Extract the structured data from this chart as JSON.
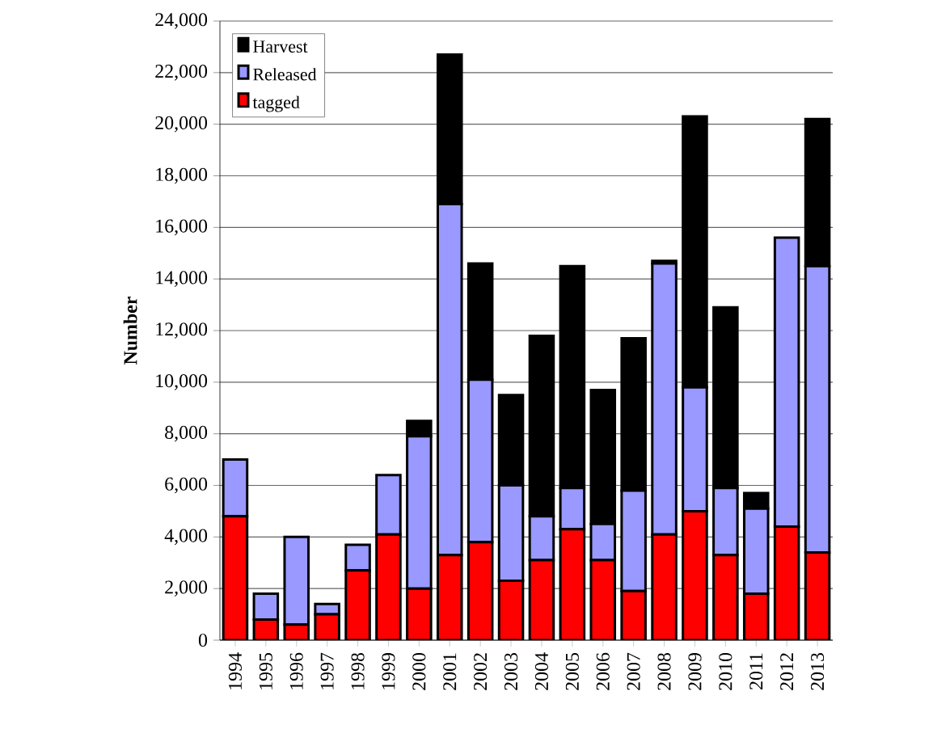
{
  "chart_data": {
    "type": "bar",
    "stacked": true,
    "ylabel": "Number",
    "categories": [
      "1994",
      "1995",
      "1996",
      "1997",
      "1998",
      "1999",
      "2000",
      "2001",
      "2002",
      "2003",
      "2004",
      "2005",
      "2006",
      "2007",
      "2008",
      "2009",
      "2010",
      "2011",
      "2012",
      "2013"
    ],
    "series": [
      {
        "name": "tagged",
        "color": "#ff0000",
        "values": [
          4800,
          800,
          600,
          1000,
          2700,
          4100,
          2000,
          3300,
          3800,
          2300,
          3100,
          4300,
          3100,
          1900,
          4100,
          5000,
          3300,
          1800,
          4400,
          3400
        ]
      },
      {
        "name": "Released",
        "color": "#9999ff",
        "values": [
          2200,
          1000,
          3400,
          400,
          1000,
          2300,
          5900,
          13600,
          6300,
          3700,
          1700,
          1600,
          1400,
          3900,
          10500,
          4800,
          2600,
          3300,
          11200,
          11100
        ]
      },
      {
        "name": "Harvest",
        "color": "#000000",
        "values": [
          0,
          0,
          0,
          0,
          0,
          0,
          600,
          5800,
          4500,
          3500,
          7000,
          8600,
          5200,
          5900,
          100,
          10500,
          7000,
          600,
          0,
          5700
        ]
      }
    ],
    "ylim": [
      0,
      24000
    ],
    "yticks": [
      {
        "value": 0,
        "label": "0"
      },
      {
        "value": 2000,
        "label": "2,000"
      },
      {
        "value": 4000,
        "label": "4,000"
      },
      {
        "value": 6000,
        "label": "6,000"
      },
      {
        "value": 8000,
        "label": "8,000"
      },
      {
        "value": 10000,
        "label": "10,000"
      },
      {
        "value": 12000,
        "label": "12,000"
      },
      {
        "value": 14000,
        "label": "14,000"
      },
      {
        "value": 16000,
        "label": "16,000"
      },
      {
        "value": 18000,
        "label": "18,000"
      },
      {
        "value": 20000,
        "label": "20,000"
      },
      {
        "value": 22000,
        "label": "22,000"
      },
      {
        "value": 24000,
        "label": "24,000"
      }
    ],
    "grid": "y",
    "legend": "top left"
  }
}
